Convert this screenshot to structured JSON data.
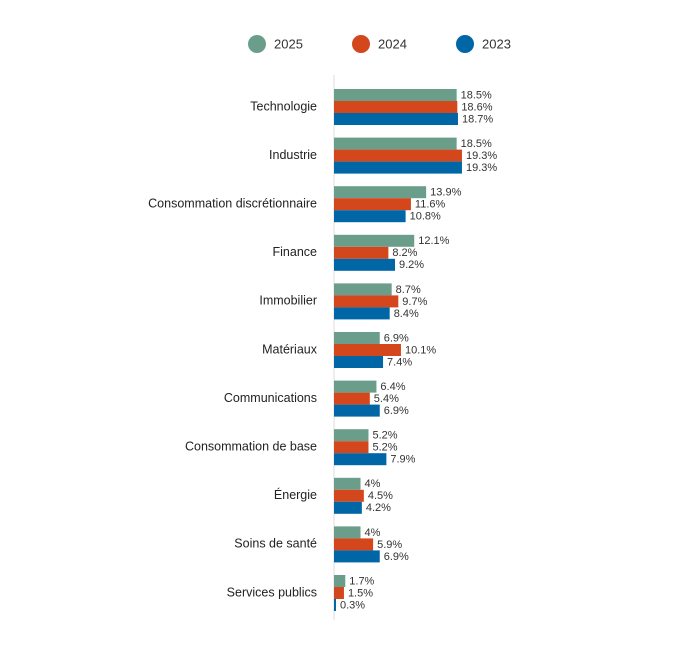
{
  "chart_data": {
    "type": "hbar",
    "categories": [
      "Technologie",
      "Industrie",
      "Consommation discrétionnaire",
      "Finance",
      "Immobilier",
      "Matériaux",
      "Communications",
      "Consommation de base",
      "Énergie",
      "Soins de santé",
      "Services publics"
    ],
    "series": [
      {
        "name": "2025",
        "color": "#6b9e8a",
        "values": [
          18.5,
          18.5,
          13.9,
          12.1,
          8.7,
          6.9,
          6.4,
          5.2,
          4,
          4,
          1.7
        ],
        "value_labels": [
          "18.5%",
          "18.5%",
          "13.9%",
          "12.1%",
          "8.7%",
          "6.9%",
          "6.4%",
          "5.2%",
          "4%",
          "4%",
          "1.7%"
        ]
      },
      {
        "name": "2024",
        "color": "#d4461b",
        "values": [
          18.6,
          19.3,
          11.6,
          8.2,
          9.7,
          10.1,
          5.4,
          5.2,
          4.5,
          5.9,
          1.5
        ],
        "value_labels": [
          "18.6%",
          "19.3%",
          "11.6%",
          "8.2%",
          "9.7%",
          "10.1%",
          "5.4%",
          "5.2%",
          "4.5%",
          "5.9%",
          "1.5%"
        ]
      },
      {
        "name": "2023",
        "color": "#0066a6",
        "values": [
          18.7,
          19.3,
          10.8,
          9.2,
          8.4,
          7.4,
          6.9,
          7.9,
          4.2,
          6.9,
          0.3
        ],
        "value_labels": [
          "18.7%",
          "19.3%",
          "10.8%",
          "9.2%",
          "8.4%",
          "7.4%",
          "6.9%",
          "7.9%",
          "4.2%",
          "6.9%",
          "0.3%"
        ]
      }
    ]
  }
}
